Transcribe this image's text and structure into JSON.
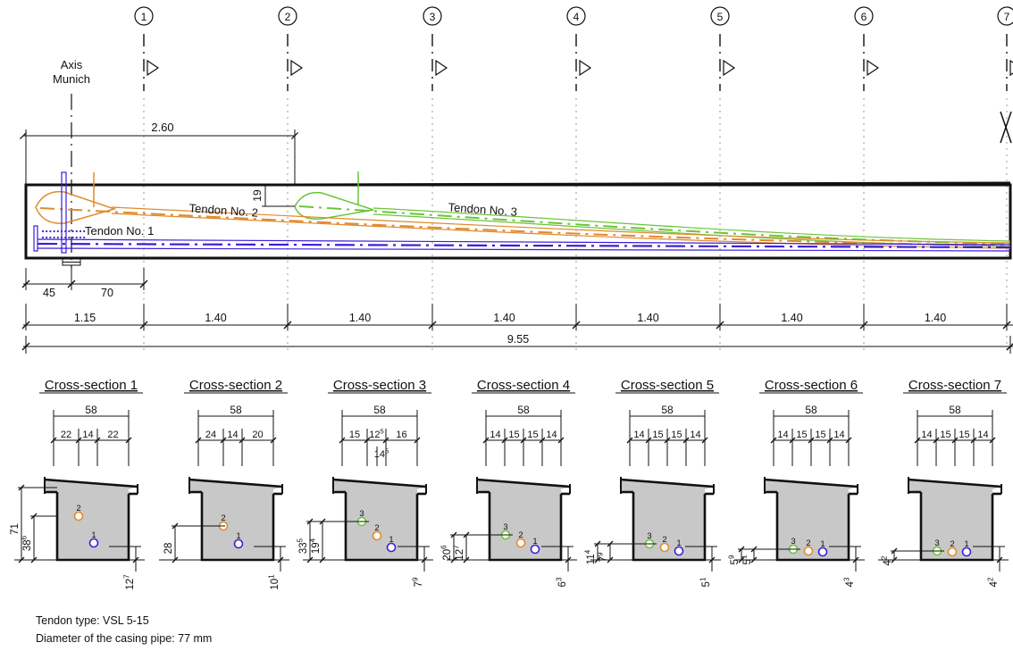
{
  "axis_markers": [
    "1",
    "2",
    "3",
    "4",
    "5",
    "6",
    "7"
  ],
  "axis_label": {
    "line1": "Axis",
    "line2": "Munich"
  },
  "dim_top": "2.60",
  "dim_offset": "19",
  "tendon_labels": {
    "t1": "Tendon No. 1",
    "t2": "Tendon No. 2",
    "t3": "Tendon No. 3"
  },
  "dims_lower": {
    "a": "45",
    "b": "70"
  },
  "spans": [
    "1.15",
    "1.40",
    "1.40",
    "1.40",
    "1.40",
    "1.40",
    "1.40"
  ],
  "total": "9.55",
  "sections": [
    {
      "title": "Cross-section 1",
      "width": "58",
      "subdims": [
        "22",
        "14",
        "22"
      ],
      "tendons": [
        "2",
        "1"
      ],
      "left_dims": [
        {
          "v": "71",
          "s": ""
        },
        {
          "v": "38",
          "s": "6"
        }
      ],
      "bottom_dims": [
        {
          "v": "12",
          "s": "7"
        }
      ]
    },
    {
      "title": "Cross-section 2",
      "width": "58",
      "subdims": [
        "24",
        "14",
        "20"
      ],
      "tendons": [
        "2",
        "1"
      ],
      "left_dims": [
        {
          "v": "28",
          "s": ""
        }
      ],
      "bottom_dims": [
        {
          "v": "10",
          "s": "1"
        }
      ]
    },
    {
      "title": "Cross-section 3",
      "width": "58",
      "subdims": [
        "15",
        "12",
        "16"
      ],
      "sub_sup": "5",
      "extra": {
        "v": "14",
        "s": "5"
      },
      "tendons": [
        "3",
        "2",
        "1"
      ],
      "left_dims": [
        {
          "v": "33",
          "s": "5"
        },
        {
          "v": "19",
          "s": "4"
        }
      ],
      "bottom_dims": [
        {
          "v": "7",
          "s": "9"
        }
      ]
    },
    {
      "title": "Cross-section 4",
      "width": "58",
      "subdims": [
        "14",
        "15",
        "15",
        "14"
      ],
      "tendons": [
        "3",
        "2",
        "1"
      ],
      "left_dims": [
        {
          "v": "20",
          "s": "6"
        },
        {
          "v": "12",
          "s": "7"
        }
      ],
      "bottom_dims": [
        {
          "v": "6",
          "s": "3"
        }
      ]
    },
    {
      "title": "Cross-section 5",
      "width": "58",
      "subdims": [
        "14",
        "15",
        "15",
        "14"
      ],
      "tendons": [
        "3",
        "2",
        "1"
      ],
      "left_dims": [
        {
          "v": "11",
          "s": "4"
        },
        {
          "v": "7",
          "s": "9"
        }
      ],
      "bottom_dims": [
        {
          "v": "5",
          "s": "1"
        }
      ]
    },
    {
      "title": "Cross-section 6",
      "width": "58",
      "subdims": [
        "14",
        "15",
        "15",
        "14"
      ],
      "tendons": [
        "3",
        "2",
        "1"
      ],
      "left_dims": [
        {
          "v": "5",
          "s": "9"
        },
        {
          "v": "5",
          "s": "1"
        }
      ],
      "bottom_dims": [
        {
          "v": "4",
          "s": "3"
        }
      ]
    },
    {
      "title": "Cross-section 7",
      "width": "58",
      "subdims": [
        "14",
        "15",
        "15",
        "14"
      ],
      "tendons": [
        "3",
        "2",
        "1"
      ],
      "left_dims": [
        {
          "v": "4",
          "s": "2"
        }
      ],
      "bottom_dims": [
        {
          "v": "4",
          "s": "2"
        }
      ]
    }
  ],
  "notes": {
    "tendon_type": "Tendon type: VSL 5-15",
    "pipe": "Diameter of the casing pipe: 77 mm"
  },
  "colors": {
    "tendon1": "#3b1fd6",
    "tendon2": "#e08a2c",
    "tendon3": "#6cc43a",
    "concrete": "#c8c8c8",
    "grid": "#999999"
  }
}
